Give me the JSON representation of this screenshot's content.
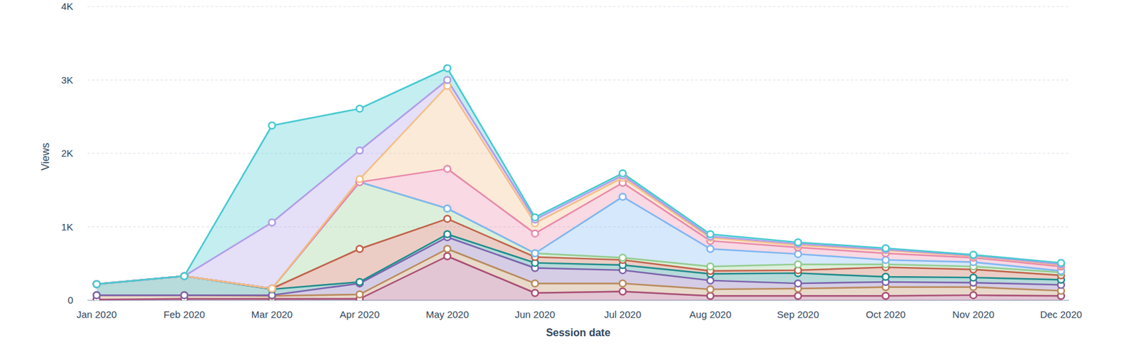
{
  "chart_data": {
    "type": "area",
    "stacked": true,
    "grid": true,
    "marker": "circle",
    "x_label": "Session date",
    "y_label": "Views",
    "categories": [
      "Jan 2020",
      "Feb 2020",
      "Mar 2020",
      "Apr 2020",
      "May 2020",
      "Jun 2020",
      "Jul 2020",
      "Aug 2020",
      "Sep 2020",
      "Oct 2020",
      "Nov 2020",
      "Dec 2020"
    ],
    "ylim": [
      0,
      4000
    ],
    "yticks": [
      0,
      {
        "value": 1000,
        "label": "1K"
      },
      {
        "value": 2000,
        "label": "2K"
      },
      {
        "value": 3000,
        "label": "3K"
      },
      {
        "value": 4000,
        "label": "4K"
      }
    ],
    "series": [
      {
        "color": "#a94f77",
        "values": [
          10,
          20,
          20,
          20,
          600,
          100,
          120,
          60,
          60,
          60,
          70,
          60
        ]
      },
      {
        "color": "#b98a5c",
        "values": [
          60,
          50,
          40,
          60,
          100,
          130,
          110,
          90,
          100,
          120,
          110,
          70
        ]
      },
      {
        "color": "#7c63ad",
        "values": [
          0,
          0,
          10,
          150,
          160,
          210,
          180,
          120,
          70,
          70,
          60,
          80
        ]
      },
      {
        "color": "#1f8c8c",
        "values": [
          150,
          260,
          80,
          20,
          40,
          70,
          70,
          90,
          140,
          70,
          70,
          70
        ]
      },
      {
        "color": "#c0634b",
        "values": [
          0,
          0,
          10,
          450,
          210,
          80,
          70,
          40,
          40,
          130,
          110,
          60
        ]
      },
      {
        "color": "#93cc8f",
        "values": [
          0,
          0,
          0,
          910,
          140,
          50,
          30,
          60,
          80,
          40,
          40,
          40
        ]
      },
      {
        "color": "#7fb6f2",
        "values": [
          0,
          0,
          0,
          0,
          0,
          0,
          830,
          240,
          140,
          60,
          60,
          20
        ]
      },
      {
        "color": "#e98aaa",
        "values": [
          0,
          0,
          0,
          0,
          540,
          270,
          190,
          110,
          90,
          90,
          60,
          60
        ]
      },
      {
        "color": "#f4be86",
        "values": [
          0,
          0,
          0,
          40,
          1130,
          140,
          70,
          40,
          30,
          40,
          20,
          20
        ]
      },
      {
        "color": "#b19ce8",
        "values": [
          0,
          0,
          900,
          390,
          80,
          50,
          30,
          20,
          20,
          10,
          10,
          10
        ]
      },
      {
        "color": "#48cad0",
        "values": [
          0,
          0,
          1320,
          570,
          160,
          30,
          30,
          30,
          20,
          20,
          10,
          20
        ]
      }
    ]
  }
}
